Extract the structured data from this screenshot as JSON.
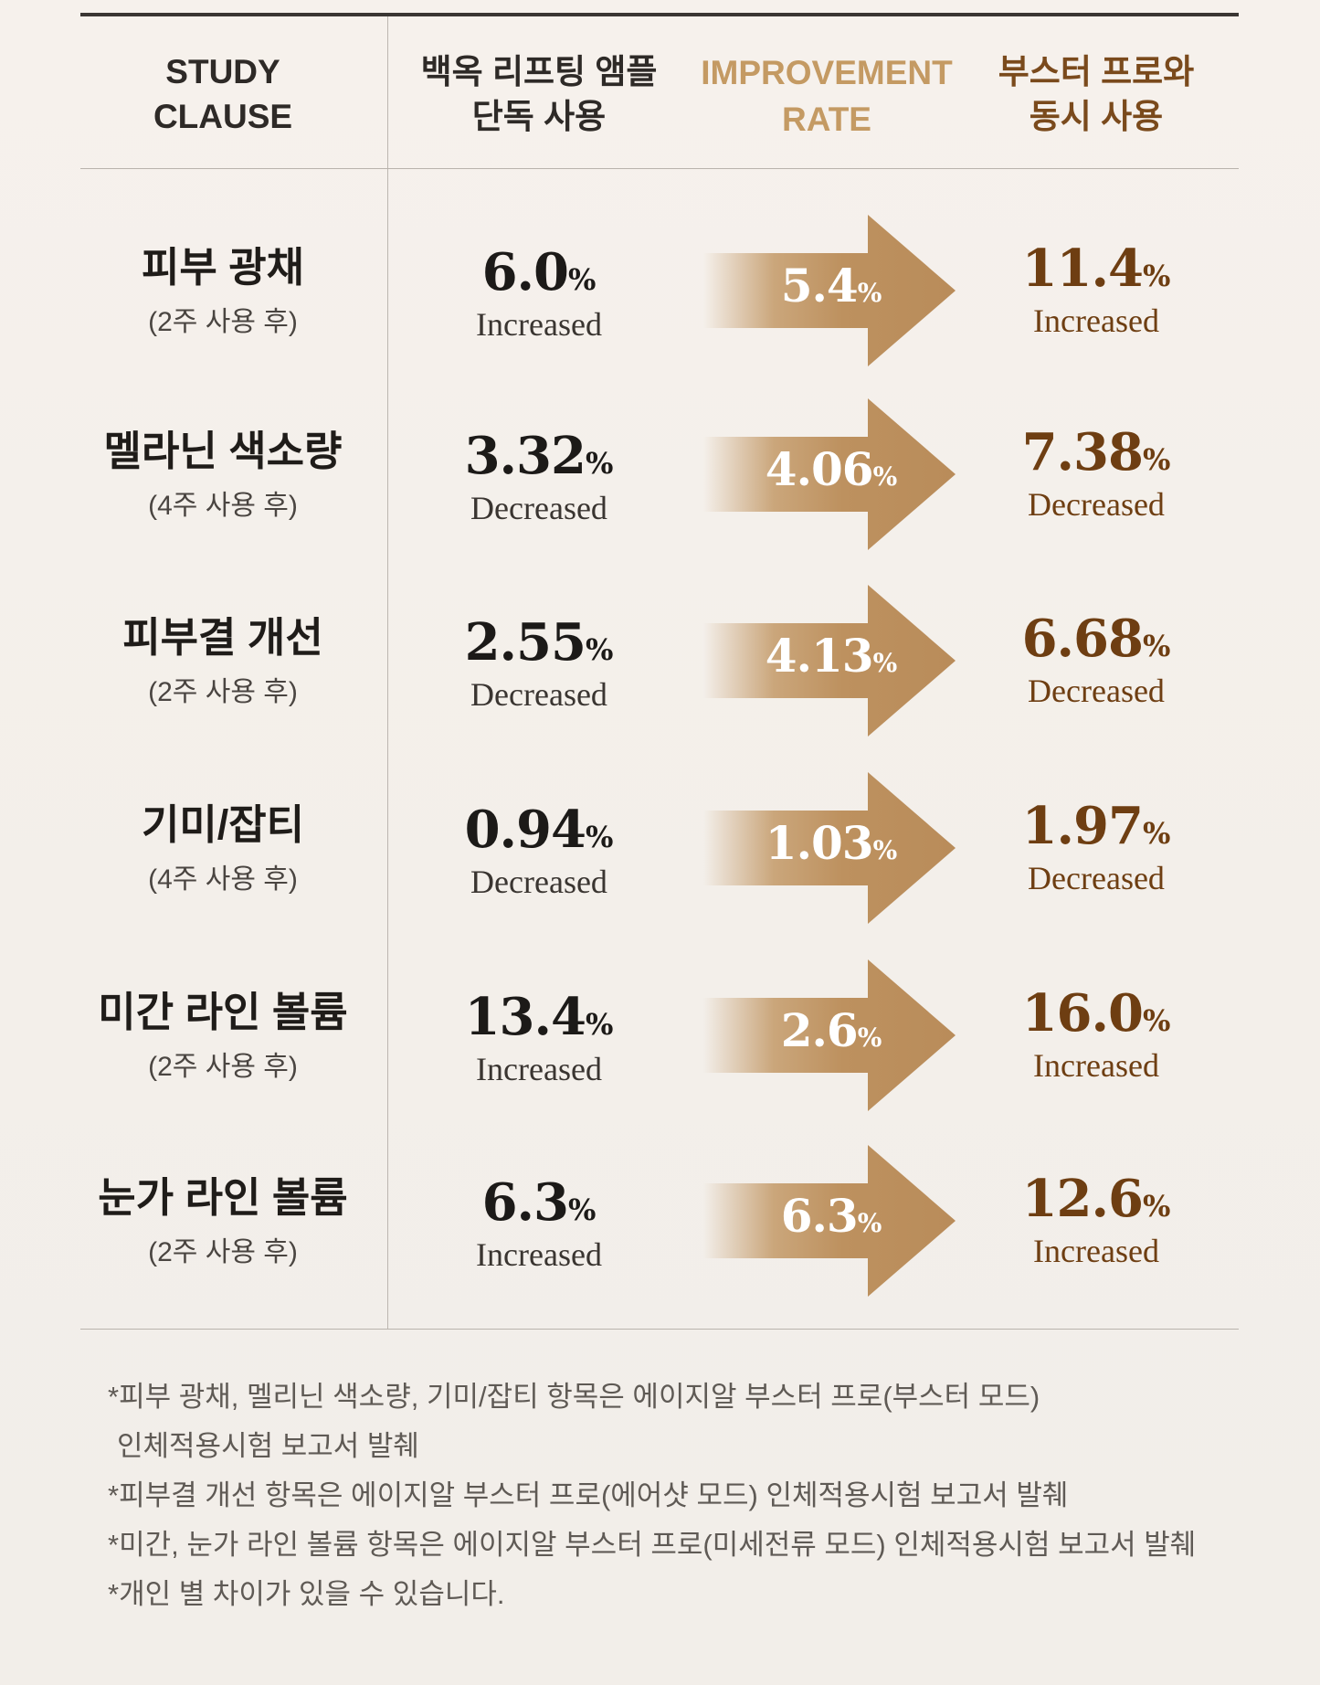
{
  "header": {
    "study_clause": "STUDY\nCLAUSE",
    "solo_use": "백옥 리프팅 앰플\n단독 사용",
    "improvement_rate": "IMPROVEMENT\nRATE",
    "combo_use": "부스터 프로와\n동시 사용"
  },
  "colors": {
    "accent_gold": "#c49a63",
    "accent_brown": "#7a4a1c",
    "arrow_fill": "#c09563",
    "text_dark": "#1e1b18"
  },
  "percent_sign": "%",
  "rows": [
    {
      "clause": "피부 광채",
      "period": "(2주 사용 후)",
      "solo_value": "6.0",
      "solo_label": "Increased",
      "rate": "5.4",
      "combo_value": "11.4",
      "combo_label": "Increased"
    },
    {
      "clause": "멜라닌 색소량",
      "period": "(4주 사용 후)",
      "solo_value": "3.32",
      "solo_label": "Decreased",
      "rate": "4.06",
      "combo_value": "7.38",
      "combo_label": "Decreased"
    },
    {
      "clause": "피부결 개선",
      "period": "(2주 사용 후)",
      "solo_value": "2.55",
      "solo_label": "Decreased",
      "rate": "4.13",
      "combo_value": "6.68",
      "combo_label": "Decreased"
    },
    {
      "clause": "기미/잡티",
      "period": "(4주 사용 후)",
      "solo_value": "0.94",
      "solo_label": "Decreased",
      "rate": "1.03",
      "combo_value": "1.97",
      "combo_label": "Decreased"
    },
    {
      "clause": "미간 라인 볼륨",
      "period": "(2주 사용 후)",
      "solo_value": "13.4",
      "solo_label": "Increased",
      "rate": "2.6",
      "combo_value": "16.0",
      "combo_label": "Increased"
    },
    {
      "clause": "눈가 라인 볼륨",
      "period": "(2주 사용 후)",
      "solo_value": "6.3",
      "solo_label": "Increased",
      "rate": "6.3",
      "combo_value": "12.6",
      "combo_label": "Increased"
    }
  ],
  "notes": [
    "*피부 광채, 멜리닌 색소량, 기미/잡티 항목은 에이지알 부스터 프로(부스터 모드)",
    "인체적용시험 보고서 발췌",
    "*피부결 개선 항목은 에이지알 부스터 프로(에어샷 모드) 인체적용시험 보고서 발췌",
    "*미간, 눈가 라인 볼륨 항목은 에이지알 부스터 프로(미세전류 모드) 인체적용시험 보고서 발췌",
    "*개인 별 차이가 있을 수 있습니다."
  ]
}
